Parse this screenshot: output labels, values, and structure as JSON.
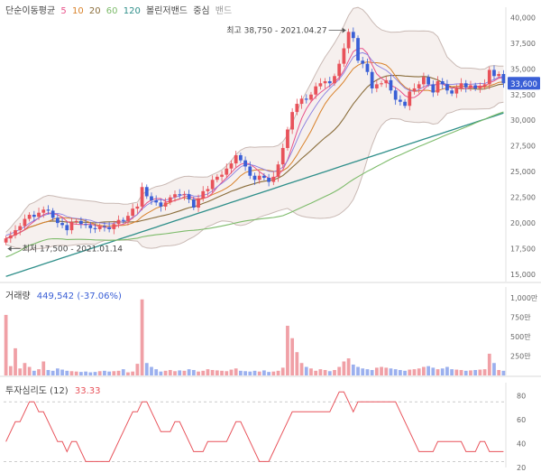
{
  "legend": {
    "title": "단순이동평균",
    "ma_items": [
      {
        "label": "5",
        "color": "#e8528a"
      },
      {
        "label": "10",
        "color": "#d9822b"
      },
      {
        "label": "20",
        "color": "#8a6d3b"
      },
      {
        "label": "60",
        "color": "#7dbb6a"
      },
      {
        "label": "120",
        "color": "#2f8f8a"
      }
    ],
    "bollinger": "볼린저밴드",
    "bollinger_center": "중심",
    "bollinger_band": "밴드"
  },
  "colors": {
    "up": "#e8525a",
    "down": "#3a5fd6",
    "vol_up": "#f0a0a6",
    "vol_down": "#9bb0ee",
    "band_fill": "#f6f0ee",
    "band_line": "#c9b9b4",
    "price_tag": "#3a5fd6"
  },
  "chart_data": [
    {
      "type": "candlestick",
      "name": "price",
      "y_ticks": [
        "40,000",
        "37,500",
        "35,000",
        "32,500",
        "30,000",
        "27,500",
        "25,000",
        "22,500",
        "20,000",
        "17,500",
        "15,000"
      ],
      "y_tick_values": [
        40000,
        37500,
        35000,
        32500,
        30000,
        27500,
        25000,
        22500,
        20000,
        17500,
        15000
      ],
      "ylim": [
        14300,
        41000
      ],
      "current_price_label": "33,600",
      "current_price": 33600,
      "annotations": {
        "high_label": "최고 38,750 - 2021.04.27",
        "high_value": 38750,
        "high_index": 73,
        "low_label": "최저 17,500 - 2021.01.14",
        "low_value": 17500,
        "low_index": 0
      },
      "closes": [
        18500,
        18800,
        19300,
        19700,
        20400,
        20800,
        20600,
        21000,
        21300,
        21200,
        20500,
        20000,
        19800,
        19300,
        20100,
        20200,
        19900,
        19800,
        19500,
        19400,
        19700,
        19600,
        19400,
        19900,
        20300,
        20200,
        20700,
        21400,
        21600,
        23500,
        22600,
        22200,
        22000,
        21600,
        22000,
        22500,
        22800,
        22700,
        22800,
        22300,
        21500,
        22400,
        23100,
        23300,
        24200,
        24500,
        24700,
        25300,
        25800,
        26600,
        26100,
        25500,
        24600,
        24200,
        24600,
        24400,
        24000,
        24500,
        25700,
        27300,
        29100,
        30800,
        31600,
        32100,
        32000,
        32500,
        33300,
        33600,
        33800,
        33600,
        34300,
        35500,
        37000,
        38600,
        38000,
        35800,
        35500,
        34700,
        33100,
        33500,
        33600,
        33900,
        32900,
        32000,
        31800,
        31400,
        32800,
        33100,
        33500,
        34200,
        33500,
        32700,
        33800,
        33500,
        32900,
        32600,
        33100,
        33600,
        33200,
        33400,
        33100,
        33300,
        33500,
        34900,
        34300,
        34500,
        33600
      ],
      "ma120": [
        14800,
        14950,
        15100,
        15250,
        15400,
        15550,
        15700,
        15850,
        16000,
        16150,
        16300,
        16450,
        16600,
        16750,
        16900,
        17050,
        17200,
        17350,
        17500,
        17650,
        17800,
        17950,
        18100,
        18250,
        18400,
        18550,
        18700,
        18850,
        19000,
        19150,
        19300,
        19450,
        19600,
        19750,
        19900,
        20050,
        20200,
        20350,
        20500,
        20650,
        20800,
        20950,
        21100,
        21250,
        21400,
        21550,
        21700,
        21850,
        22000,
        22150,
        22300,
        22450,
        22600,
        22750,
        22900,
        23050,
        23200,
        23350,
        23500,
        23650,
        23800,
        23950,
        24100,
        24250,
        24400,
        24550,
        24700,
        24850,
        25000,
        25150,
        25300,
        25450,
        25600,
        25750,
        25900,
        26050,
        26200,
        26350,
        26500,
        26650,
        26800,
        26950,
        27100,
        27250,
        27400,
        27550,
        27700,
        27850,
        28000,
        28150,
        28300,
        28450,
        28600,
        28750,
        28900,
        29050,
        29200,
        29350,
        29500,
        29650,
        29800,
        29950,
        30100,
        30250,
        30400,
        30550,
        30700
      ]
    },
    {
      "type": "bar",
      "name": "volume",
      "label": "거래량",
      "value_label": "449,542 (-37.06%)",
      "y_ticks": [
        "1,000만",
        "750만",
        "500만",
        "250만"
      ],
      "y_tick_values": [
        1000,
        750,
        500,
        250
      ],
      "ylim": [
        0,
        1000
      ],
      "values": [
        780,
        120,
        350,
        90,
        160,
        110,
        60,
        80,
        180,
        70,
        60,
        90,
        75,
        60,
        55,
        50,
        45,
        50,
        40,
        45,
        55,
        60,
        50,
        55,
        60,
        80,
        40,
        50,
        150,
        980,
        160,
        110,
        80,
        50,
        60,
        70,
        55,
        65,
        60,
        80,
        70,
        50,
        60,
        80,
        70,
        65,
        60,
        55,
        75,
        90,
        60,
        55,
        50,
        60,
        50,
        65,
        45,
        50,
        60,
        100,
        640,
        480,
        300,
        160,
        110,
        90,
        60,
        80,
        70,
        55,
        70,
        110,
        180,
        220,
        140,
        110,
        90,
        80,
        70,
        100,
        110,
        100,
        90,
        80,
        70,
        60,
        75,
        80,
        90,
        110,
        120,
        100,
        80,
        90,
        110,
        80,
        75,
        70,
        60,
        65,
        70,
        75,
        80,
        280,
        160,
        70,
        60
      ]
    },
    {
      "type": "line",
      "name": "psychology",
      "label": "투자심리도 (12)",
      "value_label": "33.33",
      "y_ticks": [
        "80",
        "60",
        "40",
        "20"
      ],
      "y_tick_values": [
        80,
        60,
        40,
        20
      ],
      "ylim": [
        20,
        85
      ],
      "guide_lines": [
        75,
        25
      ],
      "values": [
        41.67,
        50,
        58.33,
        58.33,
        66.67,
        75,
        75,
        66.67,
        66.67,
        58.33,
        50,
        41.67,
        41.67,
        33.33,
        41.67,
        41.67,
        33.33,
        25,
        25,
        25,
        25,
        25,
        25,
        33.33,
        41.67,
        50,
        58.33,
        66.67,
        66.67,
        75,
        75,
        66.67,
        58.33,
        50,
        50,
        50,
        58.33,
        58.33,
        50,
        41.67,
        33.33,
        33.33,
        33.33,
        41.67,
        41.67,
        41.67,
        41.67,
        41.67,
        50,
        58.33,
        58.33,
        50,
        41.67,
        33.33,
        25,
        25,
        25,
        33.33,
        41.67,
        50,
        58.33,
        66.67,
        66.67,
        66.67,
        66.67,
        66.67,
        66.67,
        66.67,
        66.67,
        66.67,
        75,
        83.33,
        83.33,
        75,
        66.67,
        75,
        75,
        75,
        75,
        75,
        75,
        75,
        75,
        75,
        66.67,
        58.33,
        50,
        41.67,
        33.33,
        33.33,
        33.33,
        33.33,
        41.67,
        41.67,
        41.67,
        41.67,
        41.67,
        41.67,
        33.33,
        33.33,
        33.33,
        41.67,
        41.67,
        33.33,
        33.33,
        33.33,
        33.33
      ]
    }
  ]
}
